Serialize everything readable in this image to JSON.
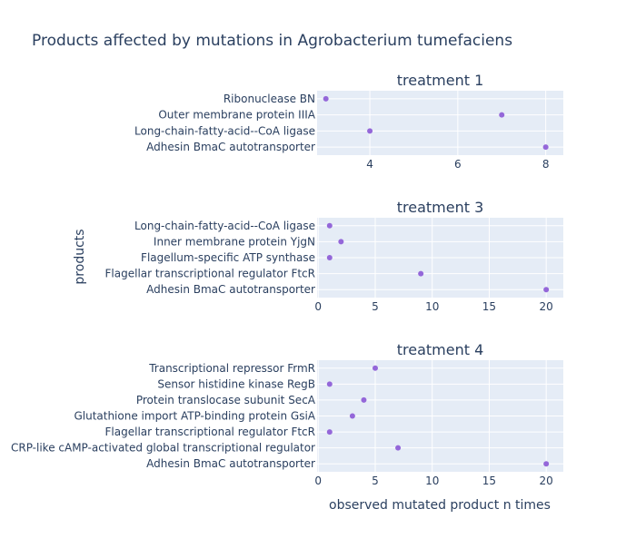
{
  "chart_data": {
    "type": "scatter",
    "title": "Products affected by mutations in Agrobacterium tumefaciens",
    "xlabel": "observed mutated product n times",
    "ylabel": "products",
    "marker_color": "#9467d9",
    "plot_bg": "#e5ecf6",
    "text_color": "#2a3f5f",
    "grid": true,
    "panels": [
      {
        "title": "treatment 1",
        "xlim": [
          2.8,
          8.4
        ],
        "xticks": [
          4,
          6,
          8
        ],
        "categories": [
          "Adhesin BmaC autotransporter",
          "Long-chain-fatty-acid--CoA ligase",
          "Outer membrane protein IIIA",
          "Ribonuclease BN"
        ],
        "values": [
          8,
          4,
          7,
          3
        ]
      },
      {
        "title": "treatment 3",
        "xlim": [
          -0.1,
          21.5
        ],
        "xticks": [
          0,
          5,
          10,
          15,
          20
        ],
        "categories": [
          "Adhesin BmaC autotransporter",
          "Flagellar transcriptional regulator FtcR",
          "Flagellum-specific ATP synthase",
          "Inner membrane protein YjgN",
          "Long-chain-fatty-acid--CoA ligase"
        ],
        "values": [
          20,
          9,
          1,
          2,
          1
        ]
      },
      {
        "title": "treatment 4",
        "xlim": [
          -0.1,
          21.5
        ],
        "xticks": [
          0,
          5,
          10,
          15,
          20
        ],
        "categories": [
          "Adhesin BmaC autotransporter",
          "CRP-like cAMP-activated global transcriptional regulator",
          "Flagellar transcriptional regulator FtcR",
          "Glutathione import ATP-binding protein GsiA",
          "Protein translocase subunit SecA",
          "Sensor histidine kinase RegB",
          "Transcriptional repressor FrmR"
        ],
        "values": [
          20,
          7,
          1,
          3,
          4,
          1,
          5
        ]
      }
    ]
  }
}
